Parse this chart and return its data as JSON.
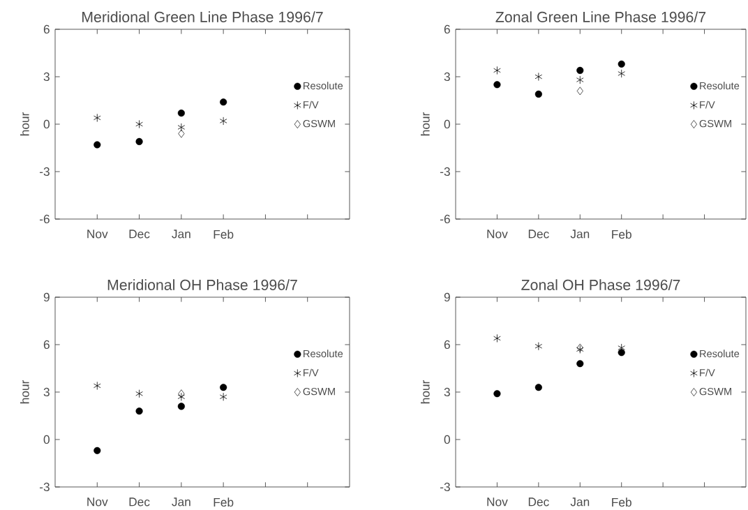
{
  "chart_data": [
    {
      "type": "scatter",
      "title": "Meridional Green Line Phase 1996/7",
      "ylabel": "hour",
      "categories": [
        "Nov",
        "Dec",
        "Jan",
        "Feb",
        null,
        null
      ],
      "ylim": [
        -6,
        6
      ],
      "yticks": [
        -6,
        -3,
        0,
        3,
        6
      ],
      "legend": "right",
      "grid": false,
      "series": [
        {
          "name": "Resolute",
          "color": "#000000",
          "marker": "circle",
          "values": [
            -1.3,
            -1.1,
            0.7,
            1.4,
            null,
            null
          ]
        },
        {
          "name": "F/V",
          "color": "#000000",
          "marker": "cross",
          "values": [
            0.4,
            0.0,
            -0.2,
            0.2,
            null,
            null
          ]
        },
        {
          "name": "GSWM",
          "color": "#000000",
          "marker": "diamond",
          "values": [
            null,
            null,
            -0.6,
            null,
            null,
            null
          ]
        }
      ]
    },
    {
      "type": "scatter",
      "title": "Zonal Green Line Phase 1996/7",
      "ylabel": "hour",
      "categories": [
        "Nov",
        "Dec",
        "Jan",
        "Feb",
        null,
        null
      ],
      "ylim": [
        -6,
        6
      ],
      "yticks": [
        -6,
        -3,
        0,
        3,
        6
      ],
      "legend": "right",
      "grid": false,
      "series": [
        {
          "name": "Resolute",
          "color": "#000000",
          "marker": "circle",
          "values": [
            2.5,
            1.9,
            3.4,
            3.8,
            null,
            null
          ]
        },
        {
          "name": "F/V",
          "color": "#000000",
          "marker": "cross",
          "values": [
            3.4,
            3.0,
            2.8,
            3.2,
            null,
            null
          ]
        },
        {
          "name": "GSWM",
          "color": "#000000",
          "marker": "diamond",
          "values": [
            null,
            null,
            2.1,
            null,
            null,
            null
          ]
        }
      ]
    },
    {
      "type": "scatter",
      "title": "Meridional OH Phase 1996/7",
      "ylabel": "hour",
      "categories": [
        "Nov",
        "Dec",
        "Jan",
        "Feb",
        null,
        null
      ],
      "ylim": [
        -3,
        9
      ],
      "yticks": [
        -3,
        0,
        3,
        6,
        9
      ],
      "legend": "right",
      "grid": false,
      "series": [
        {
          "name": "Resolute",
          "color": "#000000",
          "marker": "circle",
          "values": [
            -0.7,
            1.8,
            2.1,
            3.3,
            null,
            null
          ]
        },
        {
          "name": "F/V",
          "color": "#000000",
          "marker": "cross",
          "values": [
            3.4,
            2.9,
            2.7,
            2.7,
            null,
            null
          ]
        },
        {
          "name": "GSWM",
          "color": "#000000",
          "marker": "diamond",
          "values": [
            null,
            null,
            2.9,
            null,
            null,
            null
          ]
        }
      ]
    },
    {
      "type": "scatter",
      "title": "Zonal OH Phase 1996/7",
      "ylabel": "hour",
      "categories": [
        "Nov",
        "Dec",
        "Jan",
        "Feb",
        null,
        null
      ],
      "ylim": [
        -3,
        9
      ],
      "yticks": [
        -3,
        0,
        3,
        6,
        9
      ],
      "legend": "right",
      "grid": false,
      "series": [
        {
          "name": "Resolute",
          "color": "#000000",
          "marker": "circle",
          "values": [
            2.9,
            3.3,
            4.8,
            5.5,
            null,
            null
          ]
        },
        {
          "name": "F/V",
          "color": "#000000",
          "marker": "cross",
          "values": [
            6.4,
            5.9,
            5.7,
            5.8,
            null,
            null
          ]
        },
        {
          "name": "GSWM",
          "color": "#000000",
          "marker": "diamond",
          "values": [
            null,
            null,
            5.8,
            null,
            null,
            null
          ]
        }
      ]
    }
  ]
}
